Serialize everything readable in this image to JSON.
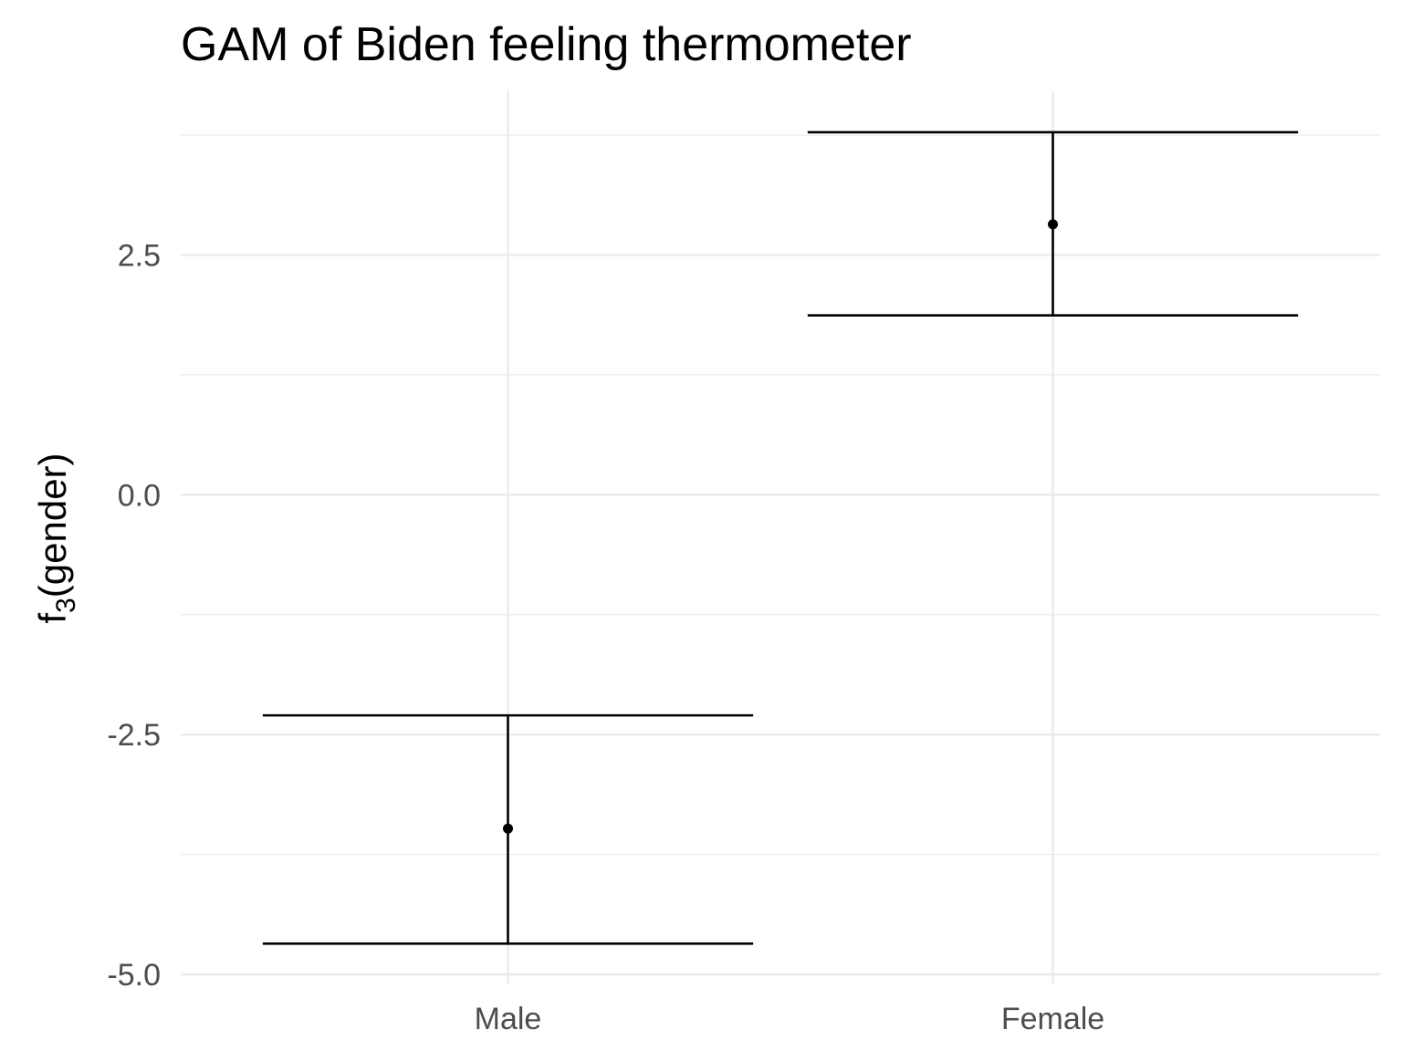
{
  "chart_data": {
    "type": "scatter",
    "title": "GAM of Biden feeling thermometer",
    "xlabel": "",
    "ylabel": {
      "base": "f",
      "subscript": "3",
      "rest": "(gender)"
    },
    "categories": [
      "Male",
      "Female"
    ],
    "points": [
      {
        "category": "Male",
        "estimate": -3.48,
        "lower": -4.68,
        "upper": -2.3
      },
      {
        "category": "Female",
        "estimate": 2.82,
        "lower": 1.87,
        "upper": 3.78
      }
    ],
    "ylim": [
      -5.0,
      3.76
    ],
    "y_ticks": [
      {
        "value": -5.0,
        "label": "-5.0"
      },
      {
        "value": -2.5,
        "label": "-2.5"
      },
      {
        "value": 0.0,
        "label": "0.0"
      },
      {
        "value": 2.5,
        "label": "2.5"
      }
    ],
    "grid": true,
    "legend": "none",
    "colors": {
      "mark": "#000000",
      "grid": "#ebebeb",
      "tick_text": "#4d4d4d"
    }
  }
}
